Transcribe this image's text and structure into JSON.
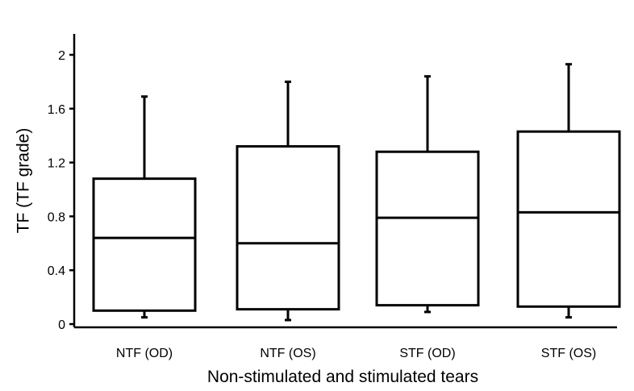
{
  "chart_data": {
    "type": "boxplot",
    "title": "",
    "xlabel": "Non-stimulated and stimulated tears",
    "ylabel": "TF (TF grade)",
    "ylim": [
      0,
      2.2
    ],
    "yticks": [
      0,
      0.4,
      0.8,
      1.2,
      1.6,
      2
    ],
    "ytick_labels": [
      "0",
      "0.4",
      "0.8",
      "1.2",
      "1.6",
      "2"
    ],
    "grid": false,
    "categories": [
      "NTF (OD)",
      "NTF (OS)",
      "STF (OD)",
      "STF (OS)"
    ],
    "boxes": [
      {
        "category": "NTF (OD)",
        "min": 0.05,
        "q1": 0.1,
        "median": 0.64,
        "q3": 1.08,
        "max": 1.69
      },
      {
        "category": "NTF (OS)",
        "min": 0.03,
        "q1": 0.11,
        "median": 0.6,
        "q3": 1.32,
        "max": 1.8
      },
      {
        "category": "STF (OD)",
        "min": 0.09,
        "q1": 0.14,
        "median": 0.79,
        "q3": 1.28,
        "max": 1.84
      },
      {
        "category": "STF (OS)",
        "min": 0.05,
        "q1": 0.13,
        "median": 0.83,
        "q3": 1.43,
        "max": 1.93
      }
    ]
  }
}
